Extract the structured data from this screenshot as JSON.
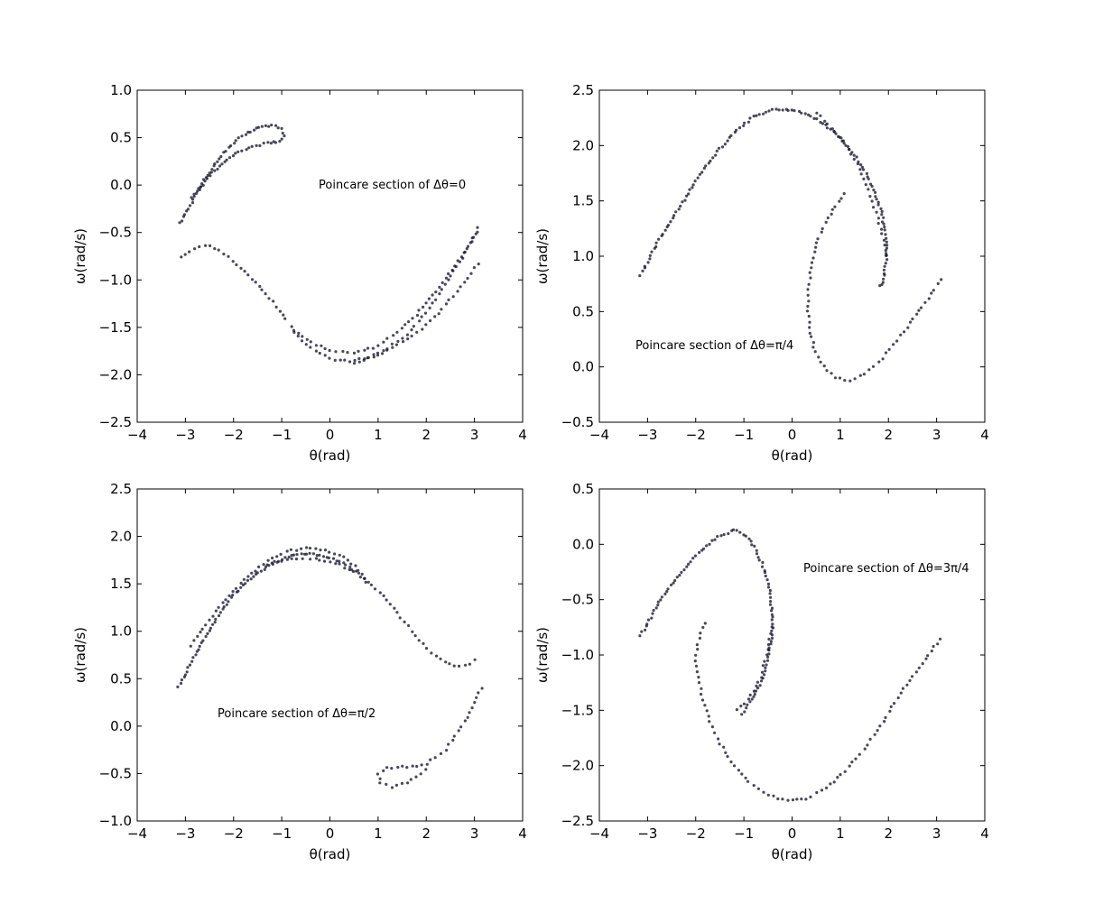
{
  "chart_data": [
    {
      "type": "scatter",
      "annotation": "Poincare section of Δθ=0",
      "xlabel": "θ(rad)",
      "ylabel": "ω(rad/s)",
      "xlim": [
        -4,
        4
      ],
      "ylim": [
        -2.5,
        1.0
      ],
      "xticks": [
        "−4",
        "−3",
        "−2",
        "−1",
        "0",
        "1",
        "2",
        "3",
        "4"
      ],
      "yticks": [
        "−2.5",
        "−2.0",
        "−1.5",
        "−1.0",
        "−0.5",
        "0.0",
        "0.5",
        "1.0"
      ],
      "curves": [
        [
          [
            -3.1,
            -0.4
          ],
          [
            -2.8,
            -0.12
          ],
          [
            -2.5,
            0.1
          ],
          [
            -2.2,
            0.25
          ],
          [
            -1.9,
            0.35
          ],
          [
            -1.6,
            0.41
          ],
          [
            -1.3,
            0.44
          ],
          [
            -1.05,
            0.46
          ],
          [
            -0.95,
            0.52
          ],
          [
            -1.0,
            0.59
          ],
          [
            -1.2,
            0.63
          ],
          [
            -1.4,
            0.62
          ],
          [
            -1.7,
            0.55
          ],
          [
            -2.0,
            0.45
          ],
          [
            -2.3,
            0.28
          ],
          [
            -2.6,
            0.05
          ],
          [
            -2.9,
            -0.15
          ]
        ],
        [
          [
            -3.1,
            -0.75
          ],
          [
            -2.9,
            -0.7
          ],
          [
            -2.6,
            -0.63
          ],
          [
            -2.3,
            -0.68
          ],
          [
            -2.0,
            -0.8
          ],
          [
            -1.7,
            -0.95
          ],
          [
            -1.4,
            -1.1
          ],
          [
            -1.1,
            -1.28
          ],
          [
            -0.85,
            -1.45
          ]
        ],
        [
          [
            -0.8,
            -1.5
          ],
          [
            -0.5,
            -1.68
          ],
          [
            -0.2,
            -1.78
          ],
          [
            0.1,
            -1.84
          ],
          [
            0.4,
            -1.86
          ],
          [
            0.8,
            -1.82
          ],
          [
            1.2,
            -1.72
          ],
          [
            1.6,
            -1.57
          ],
          [
            2.0,
            -1.35
          ],
          [
            2.4,
            -1.05
          ],
          [
            2.8,
            -0.72
          ],
          [
            3.14,
            -0.4
          ]
        ],
        [
          [
            -0.75,
            -1.53
          ],
          [
            -0.4,
            -1.66
          ],
          [
            0.0,
            -1.74
          ],
          [
            0.5,
            -1.77
          ],
          [
            1.0,
            -1.7
          ],
          [
            1.4,
            -1.55
          ],
          [
            1.8,
            -1.37
          ],
          [
            2.2,
            -1.12
          ],
          [
            2.6,
            -0.85
          ],
          [
            3.0,
            -0.55
          ],
          [
            3.14,
            -0.45
          ]
        ],
        [
          [
            0.5,
            -1.87
          ],
          [
            1.0,
            -1.8
          ],
          [
            1.5,
            -1.65
          ],
          [
            2.0,
            -1.48
          ],
          [
            2.4,
            -1.26
          ],
          [
            2.8,
            -1.03
          ],
          [
            3.14,
            -0.78
          ]
        ]
      ]
    },
    {
      "type": "scatter",
      "annotation": "Poincare section of Δθ=π/4",
      "xlabel": "θ(rad)",
      "ylabel": "ω(rad/s)",
      "xlim": [
        -4,
        4
      ],
      "ylim": [
        -0.5,
        2.5
      ],
      "xticks": [
        "−4",
        "−3",
        "−2",
        "−1",
        "0",
        "1",
        "2",
        "3",
        "4"
      ],
      "yticks": [
        "−0.5",
        "0.0",
        "0.5",
        "1.0",
        "1.5",
        "2.0",
        "2.5"
      ],
      "curves": [
        [
          [
            -3.14,
            0.83
          ],
          [
            -2.8,
            1.12
          ],
          [
            -2.4,
            1.4
          ],
          [
            -2.0,
            1.68
          ],
          [
            -1.6,
            1.92
          ],
          [
            -1.2,
            2.12
          ],
          [
            -0.8,
            2.26
          ],
          [
            -0.4,
            2.32
          ],
          [
            0.0,
            2.32
          ],
          [
            0.4,
            2.27
          ],
          [
            0.8,
            2.15
          ],
          [
            1.2,
            1.97
          ],
          [
            1.5,
            1.78
          ],
          [
            1.7,
            1.6
          ],
          [
            1.85,
            1.4
          ],
          [
            1.95,
            1.2
          ],
          [
            1.97,
            1.0
          ],
          [
            1.92,
            0.85
          ],
          [
            1.85,
            0.74
          ],
          [
            1.8,
            0.72
          ]
        ],
        [
          [
            1.1,
            1.57
          ],
          [
            0.9,
            1.45
          ],
          [
            0.7,
            1.3
          ],
          [
            0.5,
            1.12
          ],
          [
            0.4,
            0.9
          ],
          [
            0.32,
            0.65
          ],
          [
            0.35,
            0.4
          ],
          [
            0.45,
            0.18
          ],
          [
            0.65,
            0.0
          ],
          [
            0.9,
            -0.1
          ],
          [
            1.2,
            -0.12
          ],
          [
            1.5,
            -0.07
          ],
          [
            1.8,
            0.04
          ],
          [
            2.1,
            0.2
          ],
          [
            2.4,
            0.36
          ],
          [
            2.7,
            0.54
          ],
          [
            2.95,
            0.7
          ],
          [
            3.14,
            0.83
          ]
        ],
        [
          [
            0.5,
            2.3
          ],
          [
            0.9,
            2.12
          ],
          [
            1.3,
            1.88
          ],
          [
            1.6,
            1.6
          ],
          [
            1.85,
            1.25
          ],
          [
            2.0,
            0.95
          ]
        ]
      ]
    },
    {
      "type": "scatter",
      "annotation": "Poincare section of Δθ=π/2",
      "xlabel": "θ(rad)",
      "ylabel": "ω(rad/s)",
      "xlim": [
        -4,
        4
      ],
      "ylim": [
        -1.0,
        2.5
      ],
      "xticks": [
        "−4",
        "−3",
        "−2",
        "−1",
        "0",
        "1",
        "2",
        "3",
        "4"
      ],
      "yticks": [
        "−1.0",
        "−0.5",
        "0.0",
        "0.5",
        "1.0",
        "1.5",
        "2.0",
        "2.5"
      ],
      "curves": [
        [
          [
            -3.14,
            0.41
          ],
          [
            -2.8,
            0.75
          ],
          [
            -2.4,
            1.1
          ],
          [
            -2.0,
            1.38
          ],
          [
            -1.6,
            1.58
          ],
          [
            -1.2,
            1.72
          ],
          [
            -0.8,
            1.8
          ],
          [
            -0.4,
            1.82
          ],
          [
            0.0,
            1.78
          ],
          [
            0.4,
            1.68
          ],
          [
            0.65,
            1.58
          ],
          [
            0.8,
            1.5
          ]
        ],
        [
          [
            -2.9,
            0.85
          ],
          [
            -2.5,
            1.12
          ],
          [
            -2.1,
            1.38
          ],
          [
            -1.7,
            1.58
          ],
          [
            -1.3,
            1.74
          ],
          [
            -0.9,
            1.84
          ],
          [
            -0.5,
            1.88
          ],
          [
            -0.1,
            1.86
          ],
          [
            0.3,
            1.78
          ],
          [
            0.6,
            1.65
          ],
          [
            0.8,
            1.52
          ],
          [
            1.1,
            1.38
          ],
          [
            1.4,
            1.2
          ],
          [
            1.7,
            1.0
          ],
          [
            2.0,
            0.82
          ],
          [
            2.3,
            0.7
          ],
          [
            2.6,
            0.63
          ],
          [
            2.9,
            0.66
          ],
          [
            3.1,
            0.72
          ]
        ],
        [
          [
            -1.3,
            1.7
          ],
          [
            -0.8,
            1.76
          ],
          [
            -0.3,
            1.76
          ],
          [
            0.2,
            1.7
          ],
          [
            0.6,
            1.6
          ]
        ],
        [
          [
            3.14,
            0.4
          ],
          [
            2.8,
            0.05
          ],
          [
            2.4,
            -0.25
          ],
          [
            2.0,
            -0.4
          ],
          [
            1.6,
            -0.43
          ],
          [
            1.2,
            -0.44
          ],
          [
            1.0,
            -0.5
          ],
          [
            1.05,
            -0.6
          ],
          [
            1.3,
            -0.64
          ],
          [
            1.6,
            -0.6
          ],
          [
            1.9,
            -0.5
          ],
          [
            2.1,
            -0.4
          ]
        ]
      ]
    },
    {
      "type": "scatter",
      "annotation": "Poincare section of Δθ=3π/4",
      "xlabel": "θ(rad)",
      "ylabel": "ω(rad/s)",
      "xlim": [
        -4,
        4
      ],
      "ylim": [
        -2.5,
        0.5
      ],
      "xticks": [
        "−4",
        "−3",
        "−2",
        "−1",
        "0",
        "1",
        "2",
        "3",
        "4"
      ],
      "yticks": [
        "−2.5",
        "−2.0",
        "−1.5",
        "−1.0",
        "−0.5",
        "0.0",
        "0.5"
      ],
      "curves": [
        [
          [
            -3.14,
            -0.82
          ],
          [
            -2.8,
            -0.55
          ],
          [
            -2.4,
            -0.3
          ],
          [
            -2.0,
            -0.1
          ],
          [
            -1.6,
            0.05
          ],
          [
            -1.2,
            0.13
          ],
          [
            -0.95,
            0.08
          ],
          [
            -0.75,
            -0.05
          ],
          [
            -0.6,
            -0.2
          ],
          [
            -0.45,
            -0.45
          ],
          [
            -0.4,
            -0.75
          ],
          [
            -0.5,
            -1.05
          ],
          [
            -0.7,
            -1.3
          ],
          [
            -0.95,
            -1.48
          ],
          [
            -1.1,
            -1.56
          ]
        ],
        [
          [
            -1.8,
            -0.72
          ],
          [
            -1.9,
            -0.8
          ],
          [
            -2.0,
            -1.0
          ],
          [
            -1.95,
            -1.2
          ],
          [
            -1.85,
            -1.4
          ],
          [
            -1.7,
            -1.6
          ],
          [
            -1.5,
            -1.8
          ],
          [
            -1.2,
            -2.0
          ],
          [
            -0.9,
            -2.15
          ],
          [
            -0.5,
            -2.27
          ],
          [
            -0.1,
            -2.32
          ],
          [
            0.3,
            -2.3
          ],
          [
            0.7,
            -2.2
          ],
          [
            1.1,
            -2.05
          ],
          [
            1.5,
            -1.85
          ],
          [
            1.9,
            -1.6
          ],
          [
            2.3,
            -1.3
          ],
          [
            2.7,
            -1.08
          ],
          [
            3.14,
            -0.82
          ]
        ],
        [
          [
            -1.15,
            -1.5
          ],
          [
            -0.9,
            -1.4
          ],
          [
            -0.65,
            -1.2
          ],
          [
            -0.5,
            -0.95
          ],
          [
            -0.42,
            -0.7
          ]
        ]
      ]
    }
  ]
}
